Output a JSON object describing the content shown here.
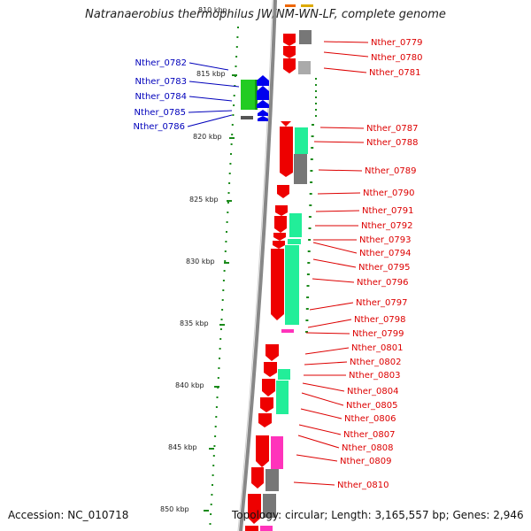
{
  "title": "Natranaerobius thermophilus JW/NM-WN-LF, complete genome",
  "footer": {
    "accession": "Accession: NC_010718",
    "summary": "Topology: circular; Length: 3,165,557 bp; Genes: 2,946"
  },
  "colors": {
    "forward_label": "#dd0000",
    "reverse_label": "#0000bb",
    "backbone": "#888888",
    "tick": "#1a8a1a",
    "gene_red": "#ee0000",
    "gene_blue": "#0000ee",
    "gene_green": "#22cc22",
    "gene_teal": "#22ee99",
    "gene_magenta": "#ff33bb",
    "gene_gray": "#777777"
  },
  "scale": {
    "top_label": "810 kbp",
    "labels": [
      "815 kbp",
      "820 kbp",
      "825 kbp",
      "830 kbp",
      "835 kbp",
      "840 kbp",
      "845 kbp",
      "850 kbp"
    ]
  },
  "reverse_genes": [
    "Nther_0782",
    "Nther_0783",
    "Nther_0784",
    "Nther_0785",
    "Nther_0786"
  ],
  "forward_genes": [
    "Nther_0779",
    "Nther_0780",
    "Nther_0781",
    "Nther_0787",
    "Nther_0788",
    "Nther_0789",
    "Nther_0790",
    "Nther_0791",
    "Nther_0792",
    "Nther_0793",
    "Nther_0794",
    "Nther_0795",
    "Nther_0796",
    "Nther_0797",
    "Nther_0798",
    "Nther_0799",
    "Nther_0801",
    "Nther_0802",
    "Nther_0803",
    "Nther_0804",
    "Nther_0805",
    "Nther_0806",
    "Nther_0807",
    "Nther_0808",
    "Nther_0809",
    "Nther_0810"
  ]
}
